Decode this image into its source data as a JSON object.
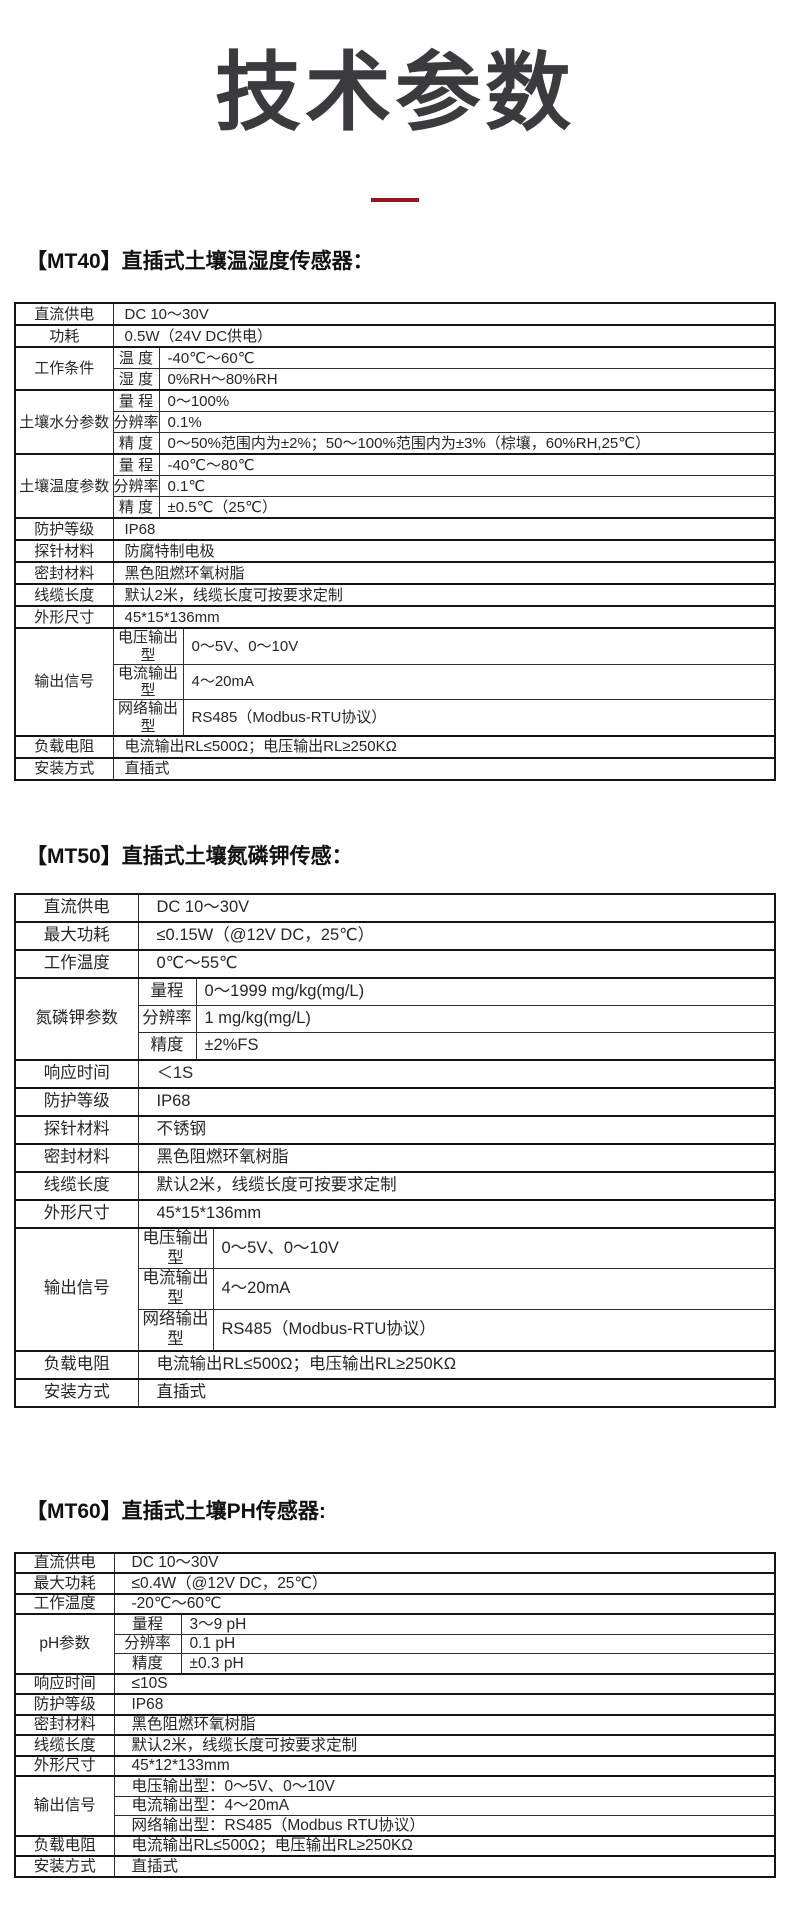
{
  "page": {
    "title": "技术参数",
    "title_color": "#3b3b3d",
    "accent_color": "#8e181d"
  },
  "sections": [
    {
      "heading": "【MT40】直插式土壤温湿度传感器：",
      "rows": [
        {
          "label": "直流供电",
          "value": "DC 10～30V"
        },
        {
          "label": "功耗",
          "value": "0.5W（24V DC供电）"
        },
        {
          "label": "工作条件",
          "rowspan": 2,
          "sub": "温 度",
          "value": "-40℃～60℃"
        },
        {
          "sub": "湿 度",
          "value": "0%RH～80%RH"
        },
        {
          "label": "土壤水分参数",
          "rowspan": 3,
          "sub": "量 程",
          "value": "0～100%"
        },
        {
          "sub": "分辨率",
          "value": "0.1%"
        },
        {
          "sub": "精 度",
          "value": "0～50%范围内为±2%；50～100%范围内为±3%（棕壤，60%RH,25℃）"
        },
        {
          "label": "土壤温度参数",
          "rowspan": 3,
          "sub": "量 程",
          "value": "-40℃～80℃"
        },
        {
          "sub": "分辨率",
          "value": "0.1℃"
        },
        {
          "sub": "精 度",
          "value": "±0.5℃（25℃）"
        },
        {
          "label": "防护等级",
          "value": "IP68"
        },
        {
          "label": "探针材料",
          "value": "防腐特制电极"
        },
        {
          "label": "密封材料",
          "value": "黑色阻燃环氧树脂"
        },
        {
          "label": "线缆长度",
          "value": "默认2米，线缆长度可按要求定制"
        },
        {
          "label": "外形尺寸",
          "value": "45*15*136mm"
        },
        {
          "label": "输出信号",
          "rowspan": 3,
          "sub": "电压输出型",
          "value": "0～5V、0～10V"
        },
        {
          "sub": "电流输出型",
          "value": "4～20mA"
        },
        {
          "sub": "网络输出型",
          "value": "RS485（Modbus-RTU协议）"
        },
        {
          "label": "负载电阻",
          "value": "电流输出RL≤500Ω；电压输出RL≥250KΩ"
        },
        {
          "label": "安装方式",
          "value": "直插式"
        }
      ]
    },
    {
      "heading": "【MT50】直插式土壤氮磷钾传感：",
      "rows": [
        {
          "label": "直流供电",
          "value": "DC 10～30V"
        },
        {
          "label": "最大功耗",
          "value": "≤0.15W（@12V DC，25℃）"
        },
        {
          "label": "工作温度",
          "value": "0℃～55℃"
        },
        {
          "label": "氮磷钾参数",
          "rowspan": 3,
          "sub": "量程",
          "value": "0～1999 mg/kg(mg/L)"
        },
        {
          "sub": "分辨率",
          "value": "1 mg/kg(mg/L)"
        },
        {
          "sub": "精度",
          "value": "±2%FS"
        },
        {
          "label": "响应时间",
          "value": "＜1S"
        },
        {
          "label": "防护等级",
          "value": "IP68"
        },
        {
          "label": "探针材料",
          "value": "不锈钢"
        },
        {
          "label": "密封材料",
          "value": "黑色阻燃环氧树脂"
        },
        {
          "label": "线缆长度",
          "value": "默认2米，线缆长度可按要求定制"
        },
        {
          "label": "外形尺寸",
          "value": "45*15*136mm"
        },
        {
          "label": "输出信号",
          "rowspan": 3,
          "sub": "电压输出型",
          "value": "0～5V、0～10V"
        },
        {
          "sub": "电流输出型",
          "value": "4～20mA"
        },
        {
          "sub": "网络输出型",
          "value": "RS485（Modbus-RTU协议）"
        },
        {
          "label": "负载电阻",
          "value": "电流输出RL≤500Ω；电压输出RL≥250KΩ"
        },
        {
          "label": "安装方式",
          "value": "直插式"
        }
      ]
    },
    {
      "heading": "【MT60】直插式土壤PH传感器:",
      "rows": [
        {
          "label": "直流供电",
          "value": "DC 10～30V"
        },
        {
          "label": "最大功耗",
          "value": "≤0.4W（@12V DC，25℃）"
        },
        {
          "label": "工作温度",
          "value": "-20℃～60℃"
        },
        {
          "label": "pH参数",
          "rowspan": 3,
          "sub": "量程",
          "value": "3～9 pH"
        },
        {
          "sub": "分辨率",
          "value": "0.1 pH"
        },
        {
          "sub": "精度",
          "value": "±0.3 pH"
        },
        {
          "label": "响应时间",
          "value": "≤10S"
        },
        {
          "label": "防护等级",
          "value": "IP68"
        },
        {
          "label": "密封材料",
          "value": "黑色阻燃环氧树脂"
        },
        {
          "label": "线缆长度",
          "value": "默认2米，线缆长度可按要求定制"
        },
        {
          "label": "外形尺寸",
          "value": "45*12*133mm"
        },
        {
          "label": "输出信号",
          "rowspan": 3,
          "value": "电压输出型：0～5V、0～10V"
        },
        {
          "value": "电流输出型：4～20mA"
        },
        {
          "value": "网络输出型：RS485（Modbus RTU协议）"
        },
        {
          "label": "负载电阻",
          "value": "电流输出RL≤500Ω；电压输出RL≥250KΩ"
        },
        {
          "label": "安装方式",
          "value": "直插式"
        }
      ]
    }
  ]
}
